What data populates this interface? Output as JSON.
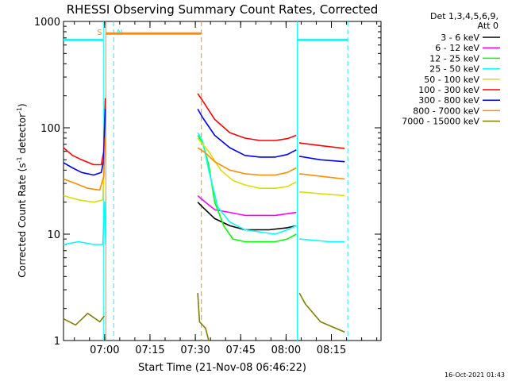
{
  "chart_data": {
    "type": "line",
    "title": "RHESSI Observing Summary Count Rates, Corrected",
    "xlabel": "Start Time (21-Nov-08 06:46:22)",
    "ylabel": "Corrected Count Rate (s⁻¹ detector⁻¹)",
    "y_scale": "log",
    "ylim": [
      1,
      1000
    ],
    "xlim_minutes_after_start": [
      0,
      105
    ],
    "x_ticks": [
      {
        "label": "07:00",
        "t": 13.6
      },
      {
        "label": "07:15",
        "t": 28.6
      },
      {
        "label": "07:30",
        "t": 43.6
      },
      {
        "label": "07:45",
        "t": 58.6
      },
      {
        "label": "08:00",
        "t": 73.6
      },
      {
        "label": "08:15",
        "t": 88.6
      }
    ],
    "y_ticks": [
      {
        "label": "1",
        "v": 1
      },
      {
        "label": "10",
        "v": 10
      },
      {
        "label": "100",
        "v": 100
      },
      {
        "label": "1000",
        "v": 1000
      }
    ],
    "legend_header": [
      "Det 1,3,4,5,6,9,",
      "Att 0"
    ],
    "legend_position": "right",
    "timestamp": "16-Oct-2021 01:43",
    "series": [
      {
        "name": "3 - 6 keV",
        "color": "#000000",
        "segments": [
          [
            [
              44.4,
              20
            ],
            [
              46,
              18
            ],
            [
              50,
              14
            ],
            [
              55,
              12
            ],
            [
              60,
              11
            ],
            [
              68,
              11
            ],
            [
              74,
              11.5
            ],
            [
              77,
              12
            ]
          ]
        ]
      },
      {
        "name": "6 - 12 keV",
        "color": "#ff00ff",
        "segments": [
          [
            [
              44.4,
              23
            ],
            [
              46,
              21
            ],
            [
              50,
              17
            ],
            [
              55,
              16
            ],
            [
              60,
              15
            ],
            [
              70,
              15
            ],
            [
              77,
              16
            ]
          ]
        ]
      },
      {
        "name": "12 - 25 keV",
        "color": "#00ff00",
        "segments": [
          [
            [
              44.4,
              85
            ],
            [
              46,
              72
            ],
            [
              48,
              45
            ],
            [
              50,
              20
            ],
            [
              53,
              12
            ],
            [
              56,
              9
            ],
            [
              60,
              8.5
            ],
            [
              70,
              8.5
            ],
            [
              74,
              9
            ],
            [
              77,
              10
            ]
          ]
        ]
      },
      {
        "name": "25 - 50 keV",
        "color": "#00ffff",
        "segments": [
          [
            [
              0,
              8
            ],
            [
              5,
              8.5
            ],
            [
              10,
              8
            ],
            [
              13,
              8
            ],
            [
              13.6,
              20
            ],
            [
              14,
              8
            ]
          ],
          [
            [
              44.4,
              90
            ],
            [
              46,
              75
            ],
            [
              48,
              40
            ],
            [
              51,
              18
            ],
            [
              55,
              13
            ],
            [
              60,
              11
            ],
            [
              70,
              10
            ],
            [
              74,
              11
            ],
            [
              77,
              12
            ]
          ],
          [
            [
              78,
              9
            ],
            [
              88,
              8.5
            ],
            [
              93,
              8.5
            ]
          ]
        ]
      },
      {
        "name": "50 - 100 keV",
        "color": "#dddd00",
        "segments": [
          [
            [
              0,
              23
            ],
            [
              5,
              21
            ],
            [
              10,
              20
            ],
            [
              13,
              21
            ],
            [
              13.6,
              60
            ]
          ],
          [
            [
              44.4,
              80
            ],
            [
              48,
              60
            ],
            [
              52,
              40
            ],
            [
              56,
              32
            ],
            [
              60,
              29
            ],
            [
              65,
              27
            ],
            [
              70,
              27
            ],
            [
              74,
              28
            ],
            [
              77,
              31
            ]
          ],
          [
            [
              78,
              25
            ],
            [
              85,
              24
            ],
            [
              93,
              23
            ]
          ]
        ]
      },
      {
        "name": "100 - 300 keV",
        "color": "#ff0000",
        "segments": [
          [
            [
              0,
              65
            ],
            [
              3,
              55
            ],
            [
              6,
              50
            ],
            [
              10,
              45
            ],
            [
              12.5,
              45
            ],
            [
              13.3,
              60
            ],
            [
              13.8,
              190
            ]
          ],
          [
            [
              44.4,
              210
            ],
            [
              46,
              180
            ],
            [
              50,
              120
            ],
            [
              55,
              90
            ],
            [
              60,
              80
            ],
            [
              65,
              76
            ],
            [
              70,
              76
            ],
            [
              74,
              79
            ],
            [
              77,
              85
            ]
          ],
          [
            [
              78,
              72
            ],
            [
              85,
              68
            ],
            [
              93,
              64
            ]
          ]
        ]
      },
      {
        "name": "300 - 800 keV",
        "color": "#0000ff",
        "segments": [
          [
            [
              0,
              47
            ],
            [
              3,
              42
            ],
            [
              6,
              38
            ],
            [
              10,
              36
            ],
            [
              12.5,
              38
            ],
            [
              13.3,
              50
            ],
            [
              13.8,
              150
            ]
          ],
          [
            [
              44.4,
              150
            ],
            [
              46,
              125
            ],
            [
              50,
              85
            ],
            [
              55,
              65
            ],
            [
              60,
              55
            ],
            [
              65,
              53
            ],
            [
              70,
              53
            ],
            [
              74,
              56
            ],
            [
              77,
              62
            ]
          ],
          [
            [
              78,
              54
            ],
            [
              85,
              50
            ],
            [
              93,
              48
            ]
          ]
        ]
      },
      {
        "name": "800 - 7000 keV",
        "color": "#ff8c00",
        "segments": [
          [
            [
              0,
              33
            ],
            [
              4,
              30
            ],
            [
              8,
              27
            ],
            [
              12,
              26
            ],
            [
              13.3,
              35
            ],
            [
              13.8,
              80
            ]
          ],
          [
            [
              44.4,
              65
            ],
            [
              47,
              58
            ],
            [
              50,
              48
            ],
            [
              55,
              40
            ],
            [
              60,
              37
            ],
            [
              65,
              36
            ],
            [
              70,
              36
            ],
            [
              74,
              38
            ],
            [
              77,
              42
            ]
          ],
          [
            [
              78,
              37
            ],
            [
              85,
              35
            ],
            [
              93,
              33
            ]
          ]
        ]
      },
      {
        "name": "7000 - 15000 keV",
        "color": "#808000",
        "segments": [
          [
            [
              0,
              1.6
            ],
            [
              4,
              1.4
            ],
            [
              8,
              1.8
            ],
            [
              12,
              1.5
            ],
            [
              13.5,
              1.7
            ]
          ],
          [
            [
              44.4,
              2.8
            ],
            [
              45,
              1.5
            ],
            [
              47,
              1.3
            ],
            [
              48,
              1
            ]
          ],
          [
            [
              78,
              2.8
            ],
            [
              80,
              2.2
            ],
            [
              85,
              1.5
            ],
            [
              93,
              1.2
            ]
          ]
        ]
      }
    ],
    "attenuator_markers": [
      {
        "label": "S",
        "t": 14.0,
        "color": "#ff8c00",
        "style": "solid"
      },
      {
        "label": "",
        "t": 45.6,
        "color": "#ff8c00",
        "style": "dashed"
      }
    ],
    "night_markers": [
      {
        "label": "N",
        "t": 16.6,
        "color": "#00ffff",
        "style": "dashed"
      },
      {
        "label": "",
        "t": 13.2,
        "color": "#00ffff",
        "style": "solid"
      },
      {
        "label": "",
        "t": 77.3,
        "color": "#00ffff",
        "style": "solid"
      },
      {
        "label": "",
        "t": 94.0,
        "color": "#00ffff",
        "style": "dashed"
      }
    ],
    "bars": [
      {
        "color": "#ff8c00",
        "from": 14.0,
        "to": 45.6,
        "level": 770
      },
      {
        "color": "#00ffff",
        "from": 0,
        "to": 13.2,
        "level": 670
      },
      {
        "color": "#00ffff",
        "from": 77.3,
        "to": 94.0,
        "level": 670
      }
    ]
  }
}
